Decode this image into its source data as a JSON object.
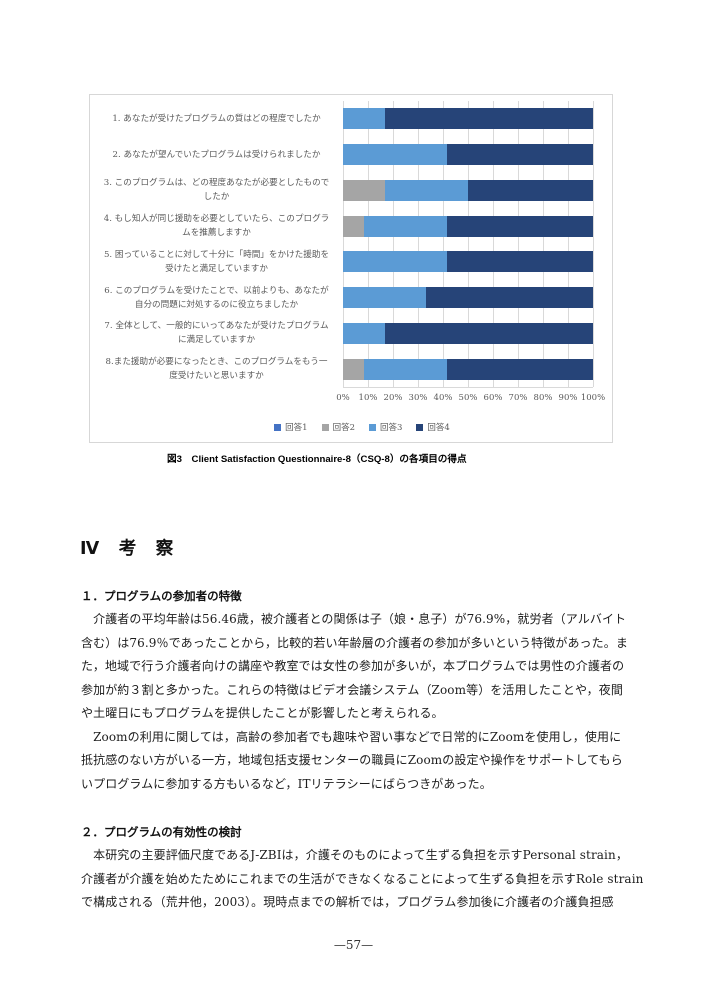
{
  "page": {
    "caption": "図3　Client Satisfaction Questionnaire-8（CSQ-8）の各項目の得点",
    "section_heading": "Ⅳ　考　察",
    "footer_page_number": "—57—"
  },
  "chart_data": {
    "type": "bar",
    "variant": "horizontal-stacked-100pct",
    "title": "",
    "xlabel": "",
    "ylabel": "",
    "x_axis": {
      "min": 0,
      "max": 100,
      "tick_labels": [
        "0%",
        "10%",
        "20%",
        "30%",
        "40%",
        "50%",
        "60%",
        "70%",
        "80%",
        "90%",
        "100%"
      ],
      "gridlines": true
    },
    "legend_position": "bottom",
    "categories": [
      [
        "1. あなたが受けたプログラムの質はどの程度でしたか"
      ],
      [
        "2. あなたが望んでいたプログラムは受けられましたか"
      ],
      [
        "3. このプログラムは、どの程度あなたが必要としたもので",
        "したか"
      ],
      [
        "4. もし知人が同じ援助を必要としていたら、このプログラ",
        "ムを推薦しますか"
      ],
      [
        "5. 困っていることに対して十分に「時間」をかけた援助を",
        "受けたと満足していますか"
      ],
      [
        "6. このプログラムを受けたことで、以前よりも、あなたが",
        "自分の問題に対処するのに役立ちましたか"
      ],
      [
        "7. 全体として、一般的にいってあなたが受けたプログラム",
        "に満足していますか"
      ],
      [
        "8.また援助が必要になったとき、このプログラムをもう一",
        "度受けたいと思いますか"
      ]
    ],
    "series": [
      {
        "name": "回答1",
        "color": "#4472C4",
        "values": [
          0,
          0,
          0,
          0,
          0,
          0,
          0,
          0
        ]
      },
      {
        "name": "回答2",
        "color": "#A5A5A5",
        "values": [
          0,
          0,
          16.7,
          8.3,
          0,
          0,
          0,
          8.3
        ]
      },
      {
        "name": "回答3",
        "color": "#5B9BD5",
        "values": [
          16.7,
          41.7,
          33.3,
          33.3,
          41.7,
          33.3,
          16.7,
          33.3
        ]
      },
      {
        "name": "回答4",
        "color": "#264478",
        "values": [
          83.3,
          58.3,
          50.0,
          58.3,
          58.3,
          66.7,
          83.3,
          58.3
        ]
      }
    ]
  },
  "sections": [
    {
      "heading": "１．プログラムの参加者の特徴",
      "lines": [
        "　介護者の平均年齢は56.46歳，被介護者との関係は子（娘・息子）が76.9%，就労者（アルバイト",
        "含む）は76.9％であったことから，比較的若い年齢層の介護者の参加が多いという特徴があった。ま",
        "た，地域で行う介護者向けの講座や教室では女性の参加が多いが，本プログラムでは男性の介護者の",
        "参加が約３割と多かった。これらの特徴はビデオ会議システム（Zoom等）を活用したことや，夜間",
        "や土曜日にもプログラムを提供したことが影響したと考えられる。",
        "　Zoomの利用に関しては，高齢の参加者でも趣味や習い事などで日常的にZoomを使用し，使用に",
        "抵抗感のない方がいる一方，地域包括支援センターの職員にZoomの設定や操作をサポートしてもら",
        "いプログラムに参加する方もいるなど，ITリテラシーにばらつきがあった。"
      ]
    },
    {
      "heading": "２．プログラムの有効性の検討",
      "lines": [
        "　本研究の主要評価尺度であるJ-ZBIは，介護そのものによって生ずる負担を示すPersonal strain，",
        "介護者が介護を始めたためにこれまでの生活ができなくなることによって生ずる負担を示すRole strain",
        "で構成される（荒井他，2003）。現時点までの解析では，プログラム参加後に介護者の介護負担感"
      ]
    }
  ]
}
